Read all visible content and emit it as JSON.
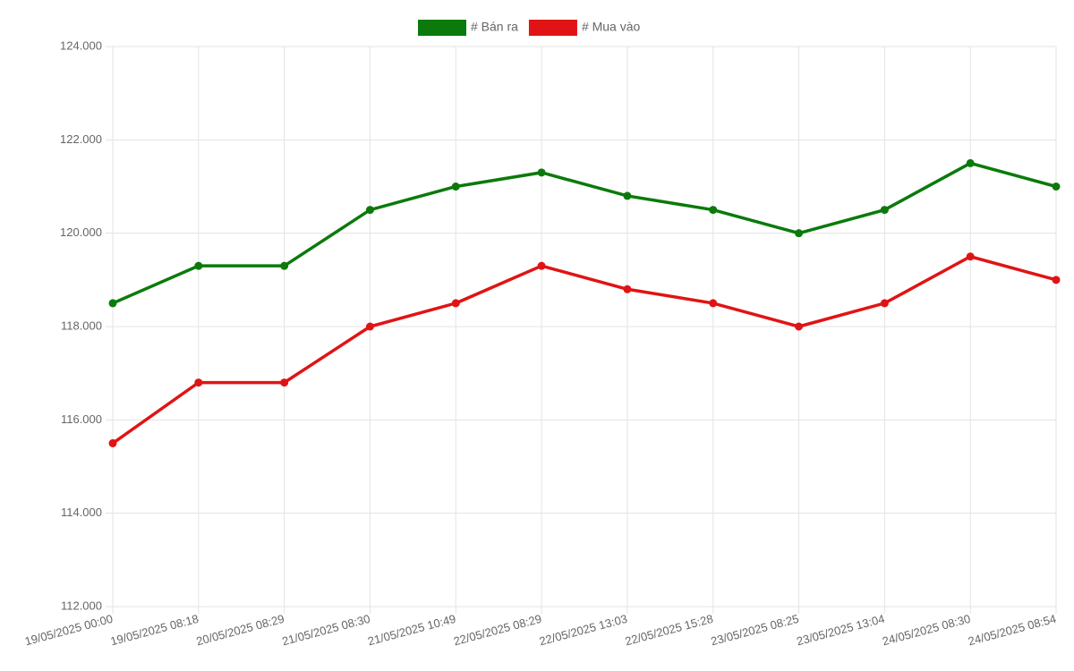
{
  "chart_data": {
    "type": "line",
    "categories": [
      "19/05/2025 00:00",
      "19/05/2025 08:18",
      "20/05/2025 08:29",
      "21/05/2025 08:30",
      "21/05/2025 10:49",
      "22/05/2025 08:29",
      "22/05/2025 13:03",
      "22/05/2025 15:28",
      "23/05/2025 08:25",
      "23/05/2025 13:04",
      "24/05/2025 08:30",
      "24/05/2025 08:54"
    ],
    "series": [
      {
        "name": "# Bán ra",
        "color": "#0b7a0b",
        "values": [
          118500,
          119300,
          119300,
          120500,
          121000,
          121300,
          120800,
          120500,
          120000,
          120500,
          121500,
          121000
        ]
      },
      {
        "name": "# Mua vào",
        "color": "#e01414",
        "values": [
          115500,
          116800,
          116800,
          118000,
          118500,
          119300,
          118800,
          118500,
          118000,
          118500,
          119500,
          119000
        ]
      }
    ],
    "ylim": [
      112000,
      124000
    ],
    "yticks": [
      {
        "value": 112000,
        "label": "112.000"
      },
      {
        "value": 114000,
        "label": "114.000"
      },
      {
        "value": 116000,
        "label": "116.000"
      },
      {
        "value": 118000,
        "label": "118.000"
      },
      {
        "value": 120000,
        "label": "120.000"
      },
      {
        "value": 122000,
        "label": "122.000"
      },
      {
        "value": 124000,
        "label": "124.000"
      }
    ],
    "grid": true,
    "legend": "top"
  }
}
